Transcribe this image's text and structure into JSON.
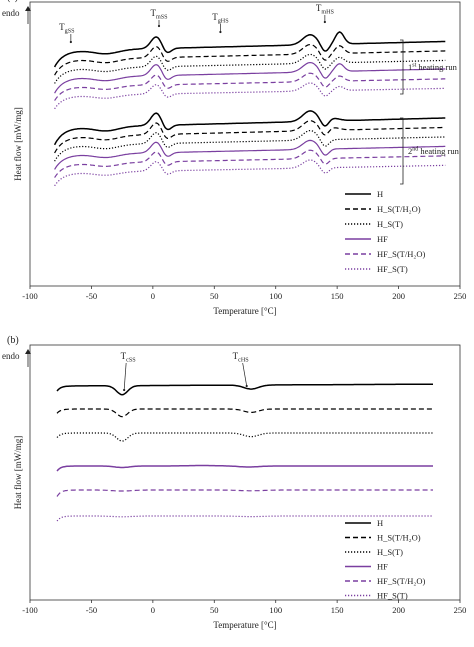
{
  "colors": {
    "black": "#000000",
    "purple": "#7a3fa0",
    "axis": "#222222"
  },
  "legend": [
    {
      "label": "H",
      "color": "black",
      "dash": "solid"
    },
    {
      "label": "H_S(T/H₂O)",
      "color": "black",
      "dash": "dashed"
    },
    {
      "label": "H_S(T)",
      "color": "black",
      "dash": "dotted"
    },
    {
      "label": "HF",
      "color": "purple",
      "dash": "solid"
    },
    {
      "label": "HF_S(T/H₂O)",
      "color": "purple",
      "dash": "dashed"
    },
    {
      "label": "HF_S(T)",
      "color": "purple",
      "dash": "dotted"
    }
  ],
  "chart_data": [
    {
      "type": "line",
      "panel_label": "(a)",
      "endo_label": "endo",
      "xlabel": "Temperature  [°C]",
      "ylabel": "Heat flow  [mW/mg]",
      "xlim": [
        -100,
        250
      ],
      "xticks": [
        -100,
        -50,
        0,
        50,
        100,
        150,
        200,
        250
      ],
      "annotations": [
        {
          "base": "T",
          "sub": "gSS",
          "x": -70
        },
        {
          "base": "T",
          "sub": "mSS",
          "x": 5
        },
        {
          "base": "T",
          "sub": "gHS",
          "x": 55
        },
        {
          "base": "T",
          "sub": "mHS",
          "x": 140
        }
      ],
      "brackets": [
        {
          "pre": "1",
          "sup": "st",
          "post": " heating run"
        },
        {
          "pre": "2",
          "sup": "nd",
          "post": " heating run"
        }
      ]
    },
    {
      "type": "line",
      "panel_label": "(b)",
      "endo_label": "endo",
      "xlabel": "Temperature  [°C]",
      "ylabel": "Heat flow  [mW/mg]",
      "xlim": [
        -100,
        250
      ],
      "xticks": [
        -100,
        -50,
        0,
        50,
        100,
        150,
        200,
        250
      ],
      "annotations": [
        {
          "base": "T",
          "sub": "cSS",
          "x": -25
        },
        {
          "base": "T",
          "sub": "cHS",
          "x": 78
        }
      ]
    }
  ]
}
